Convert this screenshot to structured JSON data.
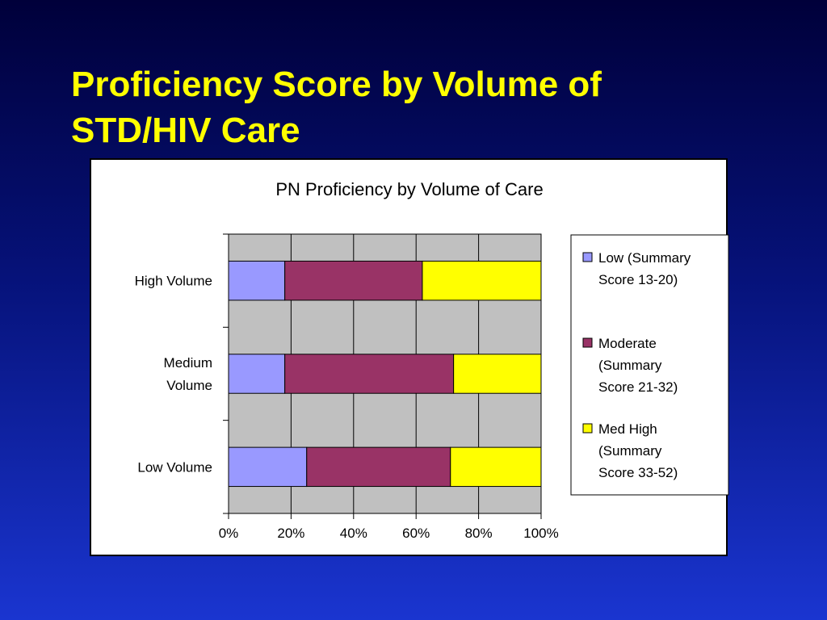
{
  "slide": {
    "title_line1": "Proficiency Score by Volume of",
    "title_line2": "STD/HIV Care"
  },
  "chart_data": {
    "type": "bar",
    "orientation": "horizontal",
    "stacked": "percent",
    "title": "PN Proficiency by Volume of Care",
    "categories": [
      [
        "Low Volume"
      ],
      [
        "Medium",
        "Volume"
      ],
      [
        "High Volume"
      ]
    ],
    "series": [
      {
        "name": [
          "Low (Summary",
          "Score 13-20)"
        ],
        "color": "#9999ff",
        "values": [
          25,
          18,
          18
        ]
      },
      {
        "name": [
          "Moderate",
          "(Summary",
          "Score 21-32)"
        ],
        "color": "#993366",
        "values": [
          46,
          54,
          44
        ]
      },
      {
        "name": [
          "Med High",
          "(Summary",
          "Score 33-52)"
        ],
        "color": "#ffff00",
        "values": [
          29,
          28,
          38
        ]
      }
    ],
    "xlim": [
      0,
      100
    ],
    "xticks": [
      "0%",
      "20%",
      "40%",
      "60%",
      "80%",
      "100%"
    ],
    "grid": true,
    "plot_background": "#c0c0c0",
    "legend_position": "right"
  }
}
